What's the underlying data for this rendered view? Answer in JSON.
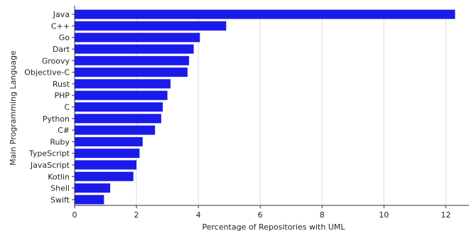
{
  "chart_data": {
    "type": "bar",
    "orientation": "horizontal",
    "xlabel": "Percentage of Repositories with UML",
    "ylabel": "Main Programming Language",
    "xlim": [
      0,
      12.75
    ],
    "xticks": [
      0,
      2,
      4,
      6,
      8,
      10,
      12
    ],
    "grid": "vertical",
    "bar_color": "#1a1aeb",
    "categories": [
      "Java",
      "C++",
      "Go",
      "Dart",
      "Groovy",
      "Objective-C",
      "Rust",
      "PHP",
      "C",
      "Python",
      "C#",
      "Ruby",
      "TypeScript",
      "JavaScript",
      "Kotlin",
      "Shell",
      "Swift"
    ],
    "values": [
      12.3,
      4.9,
      4.05,
      3.85,
      3.7,
      3.65,
      3.1,
      3.0,
      2.85,
      2.8,
      2.6,
      2.2,
      2.1,
      2.0,
      1.9,
      1.15,
      0.95
    ]
  }
}
